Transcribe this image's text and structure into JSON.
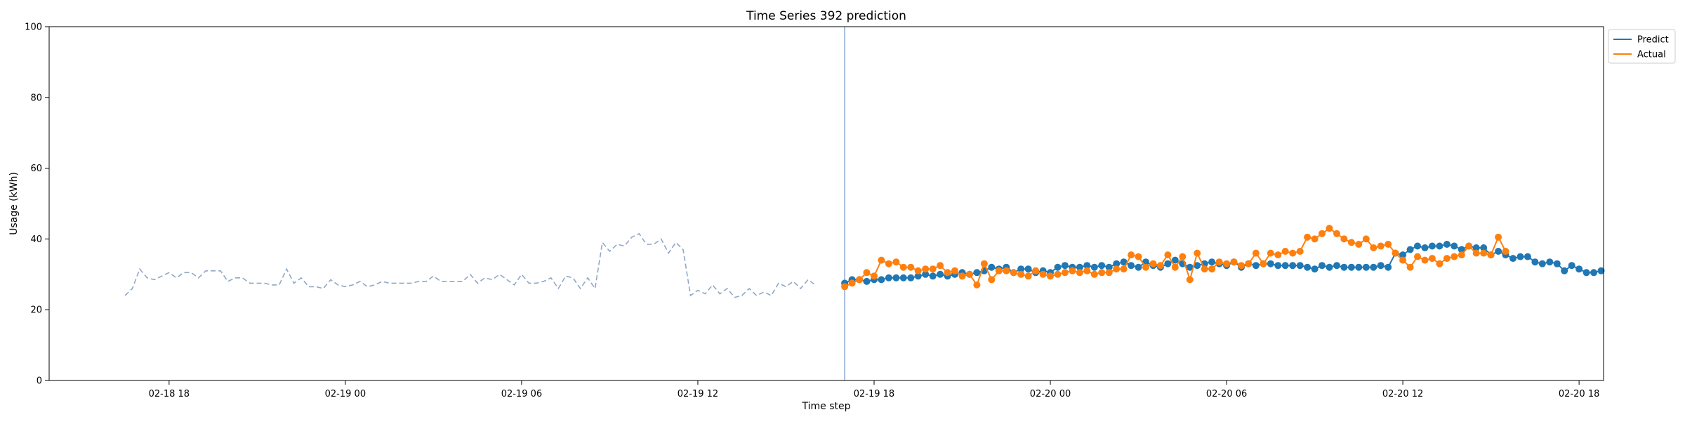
{
  "chart_data": {
    "type": "line",
    "title": "Time Series 392 prediction",
    "xlabel": "Time step",
    "ylabel": "Usage (kWh)",
    "ylim": [
      0,
      100
    ],
    "yticks": [
      0,
      20,
      40,
      60,
      80,
      100
    ],
    "xlim": [
      "2025-02-18 13:55",
      "2025-02-20 18:50"
    ],
    "xticks": [
      {
        "t": "2025-02-18 18:00",
        "label": "02-18 18"
      },
      {
        "t": "2025-02-19 00:00",
        "label": "02-19 00"
      },
      {
        "t": "2025-02-19 06:00",
        "label": "02-19 06"
      },
      {
        "t": "2025-02-19 12:00",
        "label": "02-19 12"
      },
      {
        "t": "2025-02-19 18:00",
        "label": "02-19 18"
      },
      {
        "t": "2025-02-20 00:00",
        "label": "02-20 00"
      },
      {
        "t": "2025-02-20 06:00",
        "label": "02-20 06"
      },
      {
        "t": "2025-02-20 12:00",
        "label": "02-20 12"
      },
      {
        "t": "2025-02-20 18:00",
        "label": "02-20 18"
      }
    ],
    "split_time": "2025-02-19 17:00",
    "interval_minutes": 15,
    "grid": false,
    "legend_position": "outside upper right",
    "history": {
      "start": "2025-02-18 16:30",
      "style": "dashed",
      "color": "#8fa8c8",
      "values": [
        24,
        26,
        31.5,
        29,
        28.5,
        29.5,
        30.5,
        29,
        30.5,
        30.5,
        29,
        31,
        31,
        31,
        28,
        29,
        29,
        27.5,
        27.5,
        27.5,
        27,
        27,
        31.5,
        27.5,
        29,
        26.5,
        26.5,
        26,
        28.5,
        27,
        26.5,
        27,
        28,
        26.5,
        27,
        28,
        27.5,
        27.5,
        27.5,
        27.5,
        28,
        28,
        29.5,
        28,
        28,
        28,
        28,
        30,
        27.5,
        29,
        28.5,
        30,
        28.5,
        27,
        30,
        27.5,
        27.5,
        28,
        29,
        26,
        29.5,
        29,
        26,
        29,
        26,
        39,
        36.5,
        38.5,
        38,
        40.5,
        41.5,
        38.5,
        38.5,
        40,
        36,
        39,
        37,
        24,
        25.5,
        24.5,
        27,
        24.5,
        26,
        23.5,
        24,
        26,
        24,
        25,
        24,
        27.5,
        26.5,
        28,
        26,
        28.5,
        27
      ]
    },
    "series": [
      {
        "name": "Predict",
        "color": "#1f77b4",
        "values": [
          27.5,
          28.5,
          28.5,
          28,
          28.5,
          28.5,
          29,
          29,
          29,
          29,
          29.5,
          30,
          29.5,
          30,
          29.5,
          30,
          30.5,
          30,
          30.5,
          31,
          32,
          31.5,
          32,
          30.5,
          31.5,
          31.5,
          30.5,
          31,
          30.5,
          32,
          32.5,
          32,
          32,
          32.5,
          32,
          32.5,
          32,
          33,
          33.5,
          32.5,
          32,
          33.5,
          32.5,
          32,
          33,
          34,
          33,
          32,
          32.5,
          33,
          33.5,
          33,
          32.5,
          33.5,
          32,
          33,
          32.5,
          33,
          33,
          32.5,
          32.5,
          32.5,
          32.5,
          32,
          31.5,
          32.5,
          32,
          32.5,
          32,
          32,
          32,
          32,
          32,
          32.5,
          32,
          36,
          35.5,
          37,
          38,
          37.5,
          38,
          38,
          38.5,
          38,
          37,
          38,
          37.5,
          37.5,
          35.5,
          36.5,
          35.5,
          34.5,
          35,
          35,
          33.5,
          33,
          33.5,
          33,
          31,
          32.5,
          31.5,
          30.5,
          30.5,
          31
        ]
      },
      {
        "name": "Actual",
        "color": "#ff7f0e",
        "values": [
          26.5,
          27.5,
          28.5,
          30.5,
          29.5,
          34,
          33,
          33.5,
          32,
          32,
          31,
          31.5,
          31.5,
          32.5,
          30.5,
          31,
          29.5,
          30,
          27,
          33,
          28.5,
          31,
          31,
          30.5,
          30,
          29.5,
          31,
          30,
          29.5,
          30,
          30.5,
          31,
          30.5,
          31,
          30,
          30.5,
          30.5,
          31.5,
          31.5,
          35.5,
          35,
          32,
          33,
          32.5,
          35.5,
          32,
          35,
          28.5,
          36,
          31.5,
          31.5,
          33.5,
          33,
          33.5,
          32.5,
          33,
          36,
          33,
          36,
          35.5,
          36.5,
          36,
          36.5,
          40.5,
          40,
          41.5,
          43,
          41.5,
          40,
          39,
          38.5,
          40,
          37.5,
          38,
          38.5,
          36,
          34,
          32,
          35,
          34,
          34.5,
          33,
          34.5,
          35,
          35.5,
          38,
          36,
          36,
          35.5,
          40.5,
          36.5
        ]
      }
    ],
    "legend": [
      {
        "label": "Predict",
        "color": "#1f77b4"
      },
      {
        "label": "Actual",
        "color": "#ff7f0e"
      }
    ]
  }
}
